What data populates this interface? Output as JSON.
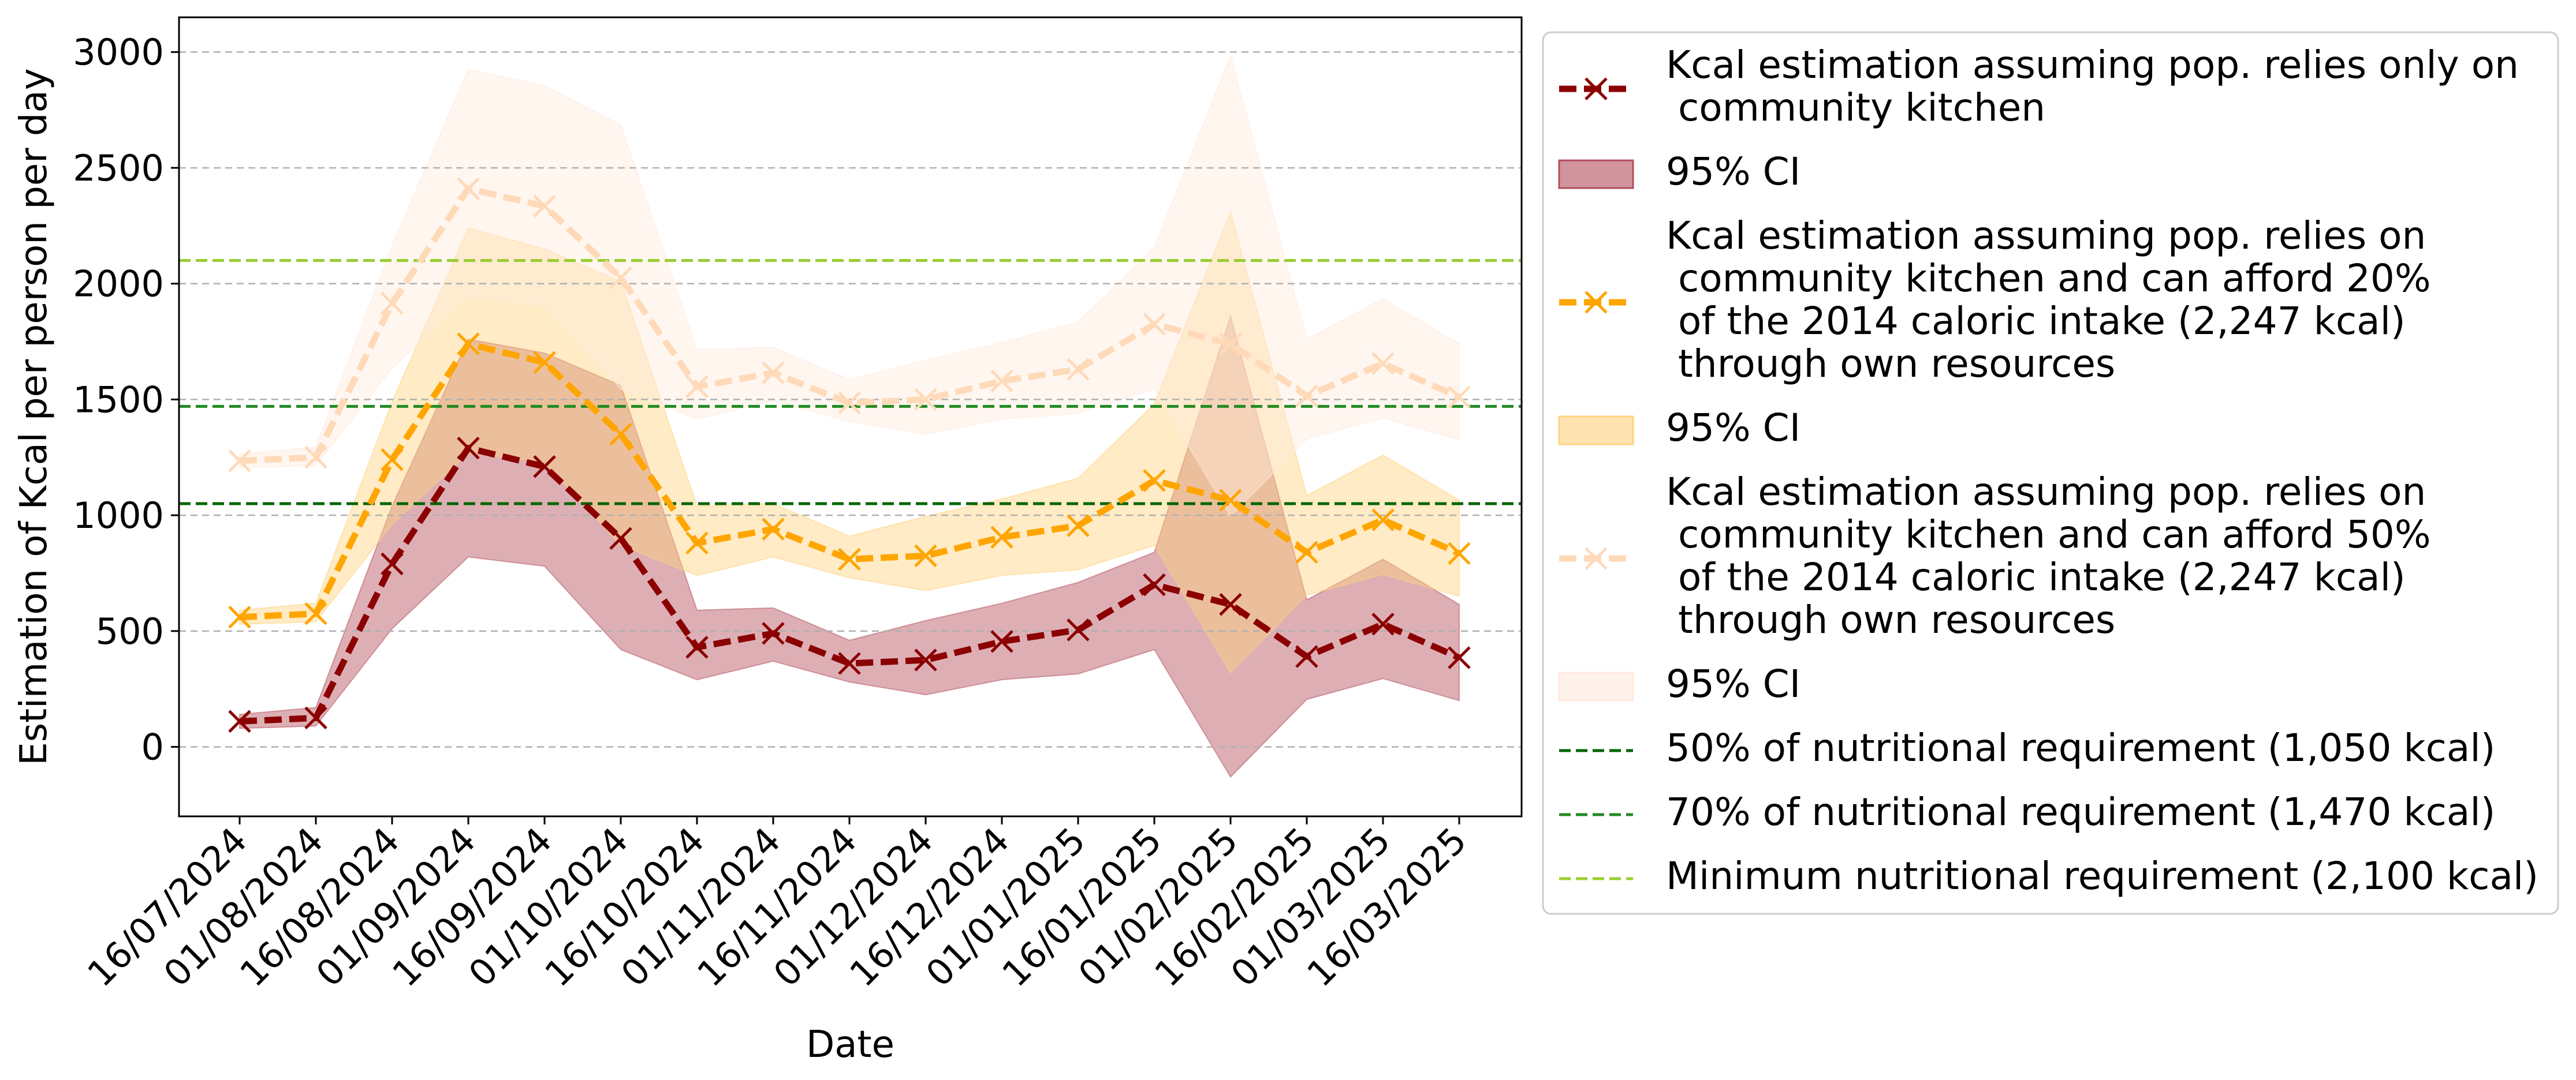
{
  "chart_data": {
    "type": "line",
    "xlabel": "Date",
    "ylabel": "Estimation of Kcal per person per day",
    "ylim": [
      -300,
      3150
    ],
    "yticks": [
      0,
      500,
      1000,
      1500,
      2000,
      2500,
      3000
    ],
    "y_grid": true,
    "legend_position": "outside-right",
    "x": [
      "16/07/2024",
      "01/08/2024",
      "16/08/2024",
      "01/09/2024",
      "16/09/2024",
      "01/10/2024",
      "16/10/2024",
      "01/11/2024",
      "16/11/2024",
      "01/12/2024",
      "16/12/2024",
      "01/01/2025",
      "16/01/2025",
      "01/02/2025",
      "16/02/2025",
      "01/03/2025",
      "16/03/2025"
    ],
    "series": [
      {
        "name": "Kcal estimation assuming pop. relies only on\n community kitchen",
        "color": "#8b0000",
        "line_style": "dashed",
        "marker": "x",
        "values": [
          110,
          125,
          790,
          1290,
          1210,
          900,
          430,
          490,
          360,
          375,
          455,
          505,
          700,
          615,
          390,
          530,
          385
        ],
        "ci_label": "95% CI",
        "ci_color": "#b34d5a",
        "ci_lower": [
          80,
          90,
          510,
          820,
          780,
          420,
          290,
          370,
          280,
          225,
          290,
          315,
          420,
          -130,
          205,
          295,
          200
        ],
        "ci_upper": [
          140,
          170,
          1040,
          1760,
          1700,
          1560,
          590,
          600,
          460,
          545,
          620,
          710,
          840,
          1860,
          635,
          810,
          615
        ]
      },
      {
        "name": "Kcal estimation assuming pop. relies on\n community kitchen and can afford 20%\n of the 2014 caloric intake (2,247 kcal)\n through own resources",
        "color": "#ffa500",
        "line_style": "dashed",
        "marker": "x",
        "values": [
          560,
          575,
          1240,
          1740,
          1660,
          1350,
          880,
          940,
          810,
          825,
          905,
          955,
          1150,
          1065,
          840,
          980,
          835
        ],
        "ci_label": "95% CI",
        "ci_color": "#ffd27f",
        "ci_lower": [
          530,
          540,
          960,
          1270,
          1230,
          870,
          740,
          820,
          730,
          675,
          740,
          765,
          870,
          320,
          655,
          745,
          650
        ],
        "ci_upper": [
          590,
          620,
          1490,
          2240,
          2150,
          2010,
          1040,
          1050,
          910,
          995,
          1070,
          1160,
          1480,
          2310,
          1085,
          1260,
          1065
        ]
      },
      {
        "name": "Kcal estimation assuming pop. relies on\n community kitchen and can afford 50%\n of the 2014 caloric intake (2,247 kcal)\n through own resources",
        "color": "#ffdab9",
        "line_style": "dashed",
        "marker": "x",
        "values": [
          1235,
          1250,
          1915,
          2410,
          2335,
          2025,
          1555,
          1615,
          1485,
          1500,
          1580,
          1630,
          1825,
          1740,
          1515,
          1655,
          1510
        ],
        "ci_label": "95% CI",
        "ci_color": "#ffeadd",
        "ci_lower": [
          1205,
          1215,
          1635,
          1945,
          1905,
          1545,
          1415,
          1495,
          1405,
          1350,
          1415,
          1440,
          1545,
          995,
          1330,
          1420,
          1325
        ],
        "ci_upper": [
          1265,
          1295,
          2165,
          2925,
          2855,
          2685,
          1715,
          1725,
          1585,
          1670,
          1745,
          1835,
          2155,
          2985,
          1760,
          1935,
          1740
        ]
      }
    ],
    "reference_lines": [
      {
        "label": "50% of nutritional requirement (1,050 kcal)",
        "value": 1050,
        "color": "#006400",
        "line_style": "dashed"
      },
      {
        "label": "70% of nutritional requirement (1,470 kcal)",
        "value": 1470,
        "color": "#228b22",
        "line_style": "dashed"
      },
      {
        "label": "Minimum nutritional requirement (2,100 kcal)",
        "value": 2100,
        "color": "#9acd32",
        "line_style": "dashed"
      }
    ]
  }
}
